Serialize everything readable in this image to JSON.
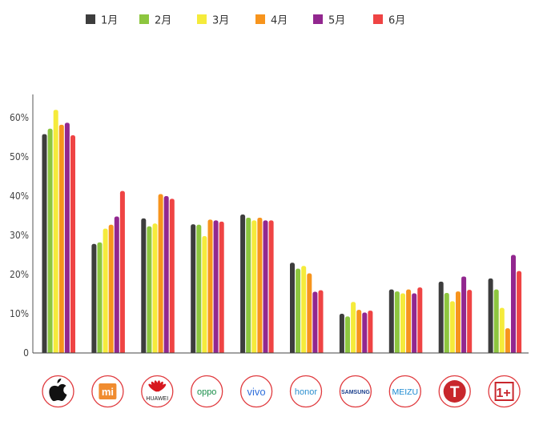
{
  "chart_data": {
    "type": "bar",
    "title": "",
    "xlabel": "",
    "ylabel": "",
    "ylim": [
      0,
      65
    ],
    "yticks": [
      0,
      10,
      20,
      30,
      40,
      50,
      60
    ],
    "ytick_labels": [
      "0",
      "10%",
      "20%",
      "30%",
      "40%",
      "50%",
      "60%"
    ],
    "grid": false,
    "legend_position": "top",
    "categories": [
      "Apple",
      "Xiaomi",
      "Huawei",
      "OPPO",
      "vivo",
      "honor",
      "Samsung",
      "Meizu",
      "Smartisan",
      "OnePlus"
    ],
    "category_logo_text": [
      "",
      "mi",
      "HUAWEI",
      "oppo",
      "vivo",
      "honor",
      "SAMSUNG",
      "MEIZU",
      "T",
      "1+"
    ],
    "series": [
      {
        "name": "1月",
        "color": "#3d3d3d",
        "values": [
          55.8,
          27.8,
          34.3,
          32.8,
          35.3,
          23.0,
          10.0,
          16.2,
          18.2,
          19.0
        ]
      },
      {
        "name": "2月",
        "color": "#8dc63f",
        "values": [
          57.2,
          28.2,
          32.3,
          32.7,
          34.5,
          21.5,
          9.3,
          15.7,
          15.3,
          16.2
        ]
      },
      {
        "name": "3月",
        "color": "#f5eb3b",
        "values": [
          62.0,
          31.7,
          33.0,
          29.8,
          33.8,
          22.2,
          13.0,
          15.2,
          13.2,
          11.5
        ]
      },
      {
        "name": "4月",
        "color": "#f7941d",
        "values": [
          58.2,
          32.7,
          40.5,
          34.0,
          34.5,
          20.3,
          11.0,
          16.2,
          15.7,
          6.3
        ]
      },
      {
        "name": "5月",
        "color": "#92278f",
        "values": [
          58.7,
          34.8,
          40.0,
          33.8,
          33.8,
          15.6,
          10.3,
          15.2,
          19.5,
          25.0
        ]
      },
      {
        "name": "6月",
        "color": "#ef4444",
        "values": [
          55.5,
          41.3,
          39.3,
          33.5,
          33.8,
          16.0,
          10.8,
          16.7,
          16.1,
          20.9
        ]
      }
    ]
  }
}
